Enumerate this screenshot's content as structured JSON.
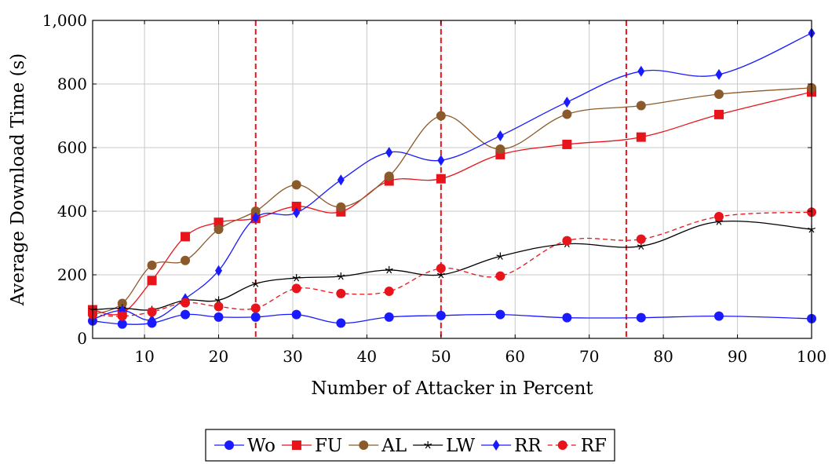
{
  "chart_data": {
    "type": "line",
    "xlabel": "Number of Attacker in Percent",
    "ylabel": "Average Download Time (s)",
    "xlim": [
      3,
      100
    ],
    "ylim": [
      0,
      1000
    ],
    "x_ticks": [
      10,
      20,
      30,
      40,
      50,
      60,
      70,
      80,
      90,
      100
    ],
    "y_ticks": [
      0,
      200,
      400,
      600,
      800,
      1000
    ],
    "y_tick_labels": [
      "0",
      "200",
      "400",
      "600",
      "800",
      "1,000"
    ],
    "grid": true,
    "legend_position": "bottom-center",
    "reference_lines": {
      "axis": "x",
      "values": [
        25,
        50,
        75
      ],
      "color": "#e8141b",
      "style": "dashed"
    },
    "series": [
      {
        "name": "Wo",
        "color": "#1a1aff",
        "marker": "circle",
        "dashed": false,
        "x": [
          3,
          7,
          11,
          15.5,
          20,
          25,
          30.5,
          36.5,
          43,
          50,
          58,
          67,
          77,
          87.5,
          100
        ],
        "y": [
          55,
          45,
          48,
          75,
          67,
          67,
          75,
          48,
          67,
          72,
          75,
          65,
          65,
          70,
          62
        ]
      },
      {
        "name": "FU",
        "color": "#e8141b",
        "marker": "square",
        "dashed": false,
        "x": [
          3,
          7,
          11,
          15.5,
          20,
          25,
          30.5,
          36.5,
          43,
          50,
          58,
          67,
          77,
          87.5,
          100
        ],
        "y": [
          90,
          80,
          182,
          320,
          365,
          377,
          415,
          398,
          495,
          502,
          578,
          610,
          633,
          704,
          775
        ]
      },
      {
        "name": "AL",
        "color": "#8b5a2b",
        "marker": "circle",
        "dashed": false,
        "x": [
          3,
          7,
          11,
          15.5,
          20,
          25,
          30.5,
          36.5,
          43,
          50,
          58,
          67,
          77,
          87.5,
          100
        ],
        "y": [
          75,
          110,
          230,
          245,
          343,
          400,
          483,
          413,
          510,
          700,
          595,
          705,
          732,
          768,
          788
        ]
      },
      {
        "name": "LW",
        "color": "#000000",
        "marker": "star",
        "dashed": false,
        "x": [
          3,
          7,
          11,
          15.5,
          20,
          25,
          30.5,
          36.5,
          43,
          50,
          58,
          67,
          77,
          87.5,
          100
        ],
        "y": [
          90,
          95,
          90,
          120,
          120,
          172,
          190,
          195,
          215,
          200,
          258,
          297,
          290,
          367,
          343
        ]
      },
      {
        "name": "RR",
        "color": "#1a1aff",
        "marker": "diamond",
        "dashed": false,
        "x": [
          3,
          7,
          11,
          15.5,
          20,
          25,
          30.5,
          36.5,
          43,
          50,
          58,
          67,
          77,
          87.5,
          100
        ],
        "y": [
          60,
          88,
          58,
          125,
          213,
          380,
          395,
          498,
          585,
          560,
          637,
          743,
          840,
          830,
          960
        ]
      },
      {
        "name": "RF",
        "color": "#e8141b",
        "marker": "circle",
        "dashed": true,
        "x": [
          3,
          7,
          11,
          15.5,
          20,
          25,
          30.5,
          36.5,
          43,
          50,
          58,
          67,
          77,
          87.5,
          100
        ],
        "y": [
          75,
          70,
          83,
          112,
          100,
          95,
          157,
          141,
          148,
          220,
          196,
          307,
          312,
          383,
          397
        ]
      }
    ]
  }
}
